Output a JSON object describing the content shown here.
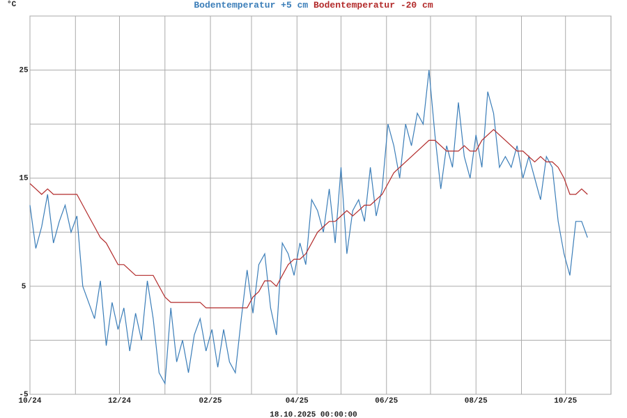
{
  "chart_data": {
    "type": "line",
    "y_unit": "°C",
    "footer": "18.10.2025 00:00:00",
    "x": [
      0,
      4,
      8,
      12,
      16,
      20,
      24,
      28,
      32,
      36,
      40,
      44,
      48,
      52,
      56,
      60,
      64,
      68,
      72,
      76,
      80,
      84,
      88,
      92,
      96,
      100,
      104,
      108,
      112,
      116,
      120,
      124,
      128,
      132,
      136,
      140,
      144,
      148,
      152,
      156,
      160,
      164,
      168,
      172,
      176,
      180,
      184,
      188,
      192,
      196,
      200,
      204,
      208,
      212,
      216,
      220,
      224,
      228,
      232,
      236,
      240,
      244,
      248,
      252,
      256,
      260,
      264,
      268,
      272,
      276,
      280,
      284,
      288,
      292,
      296,
      300,
      304,
      308,
      312,
      316,
      320,
      324,
      328,
      332,
      336,
      340,
      344,
      348,
      352,
      356,
      360,
      364,
      368,
      372,
      376,
      380
    ],
    "series": [
      {
        "name": "Bodentemperatur +5 cm",
        "color": "#3a7db8",
        "values": [
          12.5,
          8.5,
          10.5,
          13.5,
          9,
          11,
          12.5,
          10,
          11.5,
          5,
          3.5,
          2,
          5.5,
          -0.5,
          3.5,
          1,
          3,
          -1,
          2.5,
          0,
          5.5,
          2,
          -3,
          -4,
          3,
          -2,
          0,
          -3,
          0.5,
          2,
          -1,
          1,
          -2.5,
          1,
          -2,
          -3,
          2,
          6.5,
          2.5,
          7,
          8,
          3,
          0.5,
          9,
          8,
          6,
          9,
          7,
          13,
          12,
          10,
          14,
          9,
          16,
          8,
          12,
          13,
          11,
          16,
          11.5,
          14,
          20,
          18,
          15,
          20,
          18,
          21,
          20,
          25,
          19,
          14,
          18,
          16,
          22,
          17,
          15,
          19,
          16,
          23,
          21,
          16,
          17,
          16,
          18,
          15,
          17,
          15,
          13,
          17,
          16,
          11,
          8,
          6,
          11,
          11,
          9.5
        ]
      },
      {
        "name": "Bodentemperatur -20 cm",
        "color": "#b22a2a",
        "values": [
          14.5,
          14,
          13.5,
          14,
          13.5,
          13.5,
          13.5,
          13.5,
          13.5,
          12.5,
          11.5,
          10.5,
          9.5,
          9,
          8,
          7,
          7,
          6.5,
          6,
          6,
          6,
          6,
          5,
          4,
          3.5,
          3.5,
          3.5,
          3.5,
          3.5,
          3.5,
          3,
          3,
          3,
          3,
          3,
          3,
          3,
          3,
          4,
          4.5,
          5.5,
          5.5,
          5,
          6,
          7,
          7.5,
          7.5,
          8,
          9,
          10,
          10.5,
          11,
          11,
          11.5,
          12,
          11.5,
          12,
          12.5,
          12.5,
          13,
          13.5,
          14.5,
          15.5,
          16,
          16.5,
          17,
          17.5,
          18,
          18.5,
          18.5,
          18,
          17.5,
          17.5,
          17.5,
          18,
          17.5,
          17.5,
          18.5,
          19,
          19.5,
          19,
          18.5,
          18,
          17.5,
          17.5,
          17,
          16.5,
          17,
          16.5,
          16.5,
          16,
          15,
          13.5,
          13.5,
          14,
          13.5
        ]
      }
    ],
    "xlim": [
      0,
      396
    ],
    "xticks": [
      {
        "value": 0,
        "label": "10/24"
      },
      {
        "value": 61,
        "label": "12/24"
      },
      {
        "value": 123,
        "label": "02/25"
      },
      {
        "value": 182,
        "label": "04/25"
      },
      {
        "value": 243,
        "label": "06/25"
      },
      {
        "value": 304,
        "label": "08/25"
      },
      {
        "value": 365,
        "label": "10/25"
      }
    ],
    "xminor_ticks": [
      31,
      92,
      151,
      212,
      273,
      335
    ],
    "ylim": [
      -5,
      30
    ],
    "yticks": [
      -5,
      5,
      15,
      25
    ],
    "yminor_ticks": [
      0,
      10,
      20,
      30
    ],
    "grid": true
  }
}
